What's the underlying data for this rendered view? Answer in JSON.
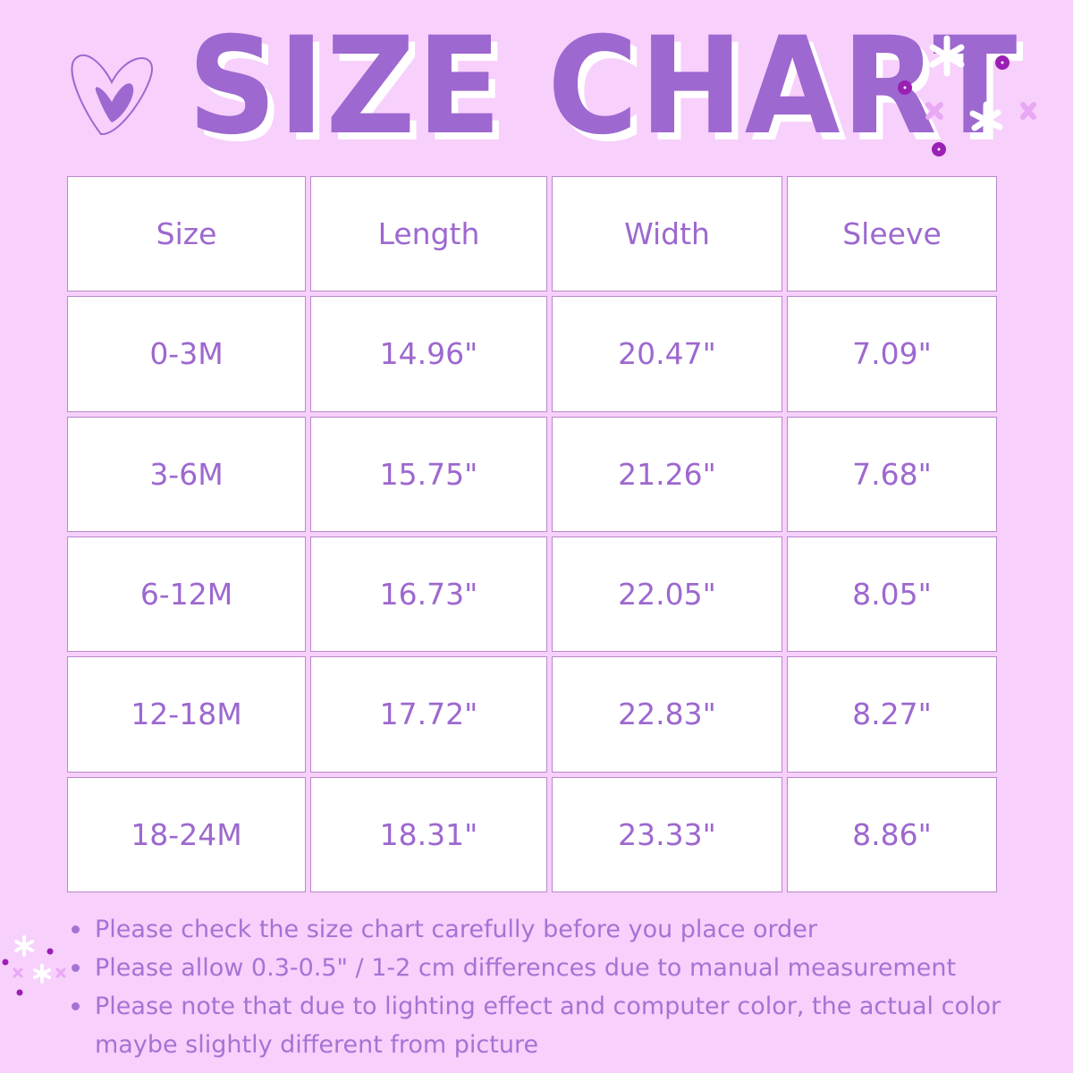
{
  "title": "SIZE CHART",
  "colors": {
    "background": "#f7d0fc",
    "accent": "#9d68cf",
    "cell": "#ffffff",
    "dot": "#9a1fb5"
  },
  "icons": [
    "heart-icon",
    "sparkle-icon",
    "dot-icon",
    "cross-icon"
  ],
  "table": {
    "headers": [
      "Size",
      "Length",
      "Width",
      "Sleeve"
    ],
    "rows": [
      [
        "0-3M",
        "14.96\"",
        "20.47\"",
        "7.09\""
      ],
      [
        "3-6M",
        "15.75\"",
        "21.26\"",
        "7.68\""
      ],
      [
        "6-12M",
        "16.73\"",
        "22.05\"",
        "8.05\""
      ],
      [
        "12-18M",
        "17.72\"",
        "22.83\"",
        "8.27\""
      ],
      [
        "18-24M",
        "18.31\"",
        "23.33\"",
        "8.86\""
      ]
    ]
  },
  "notes": [
    "Please check the size chart carefully before you place order",
    "Please allow 0.3-0.5\" / 1-2 cm differences due to manual measurement",
    "Please note that due to lighting effect and computer color, the actual color maybe slightly different from picture"
  ]
}
